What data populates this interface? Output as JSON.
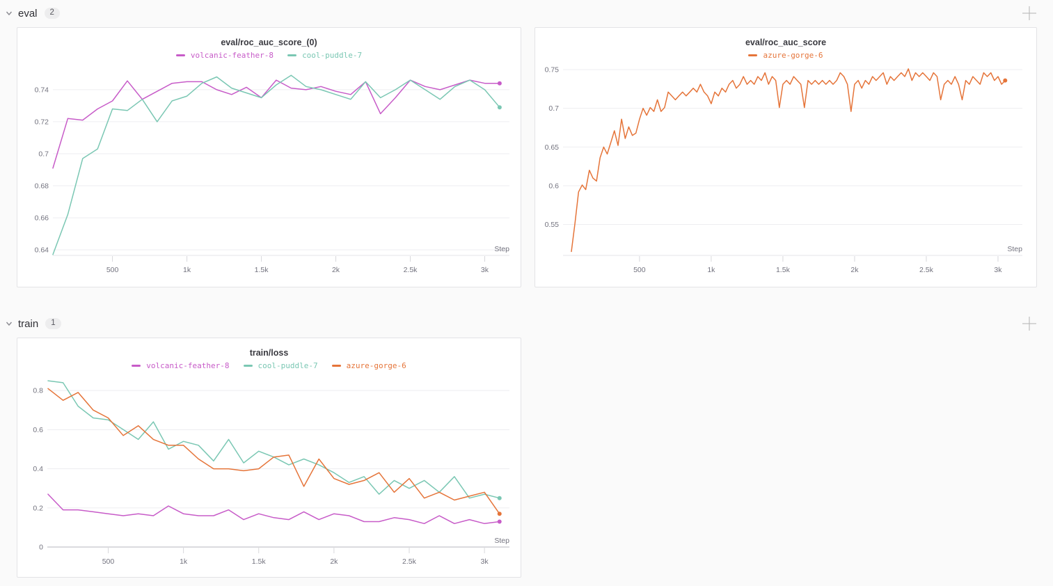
{
  "ui": {
    "background": "#fafafa"
  },
  "sections": [
    {
      "label": "eval",
      "count": "2"
    },
    {
      "label": "train",
      "count": "1"
    }
  ],
  "chart_data": [
    {
      "type": "line",
      "title": "eval/roc_auc_score_(0)",
      "xlabel": "Step",
      "grid": true,
      "legend_position": "top",
      "endpoint_dots": true,
      "ylim": [
        0.6365,
        0.7543
      ],
      "xlim": [
        100,
        3166
      ],
      "yticks": [
        {
          "v": 0.64,
          "label": "0.64"
        },
        {
          "v": 0.66,
          "label": "0.66"
        },
        {
          "v": 0.68,
          "label": "0.68"
        },
        {
          "v": 0.7,
          "label": "0.7"
        },
        {
          "v": 0.72,
          "label": "0.72"
        },
        {
          "v": 0.74,
          "label": "0.74"
        }
      ],
      "xticks": [
        {
          "v": 500,
          "label": "500"
        },
        {
          "v": 1000,
          "label": "1k"
        },
        {
          "v": 1500,
          "label": "1.5k"
        },
        {
          "v": 2000,
          "label": "2k"
        },
        {
          "v": 2500,
          "label": "2.5k"
        },
        {
          "v": 3000,
          "label": "3k"
        }
      ],
      "x": [
        100,
        200,
        300,
        400,
        500,
        600,
        700,
        800,
        900,
        1000,
        1100,
        1200,
        1300,
        1400,
        1500,
        1600,
        1700,
        1800,
        1900,
        2000,
        2100,
        2200,
        2300,
        2400,
        2500,
        2600,
        2700,
        2800,
        2900,
        3000,
        3100
      ],
      "series": [
        {
          "name": "volcanic-feather-8",
          "color": "#c75bc8",
          "values": [
            0.691,
            0.722,
            0.721,
            0.728,
            0.733,
            0.7455,
            0.734,
            0.739,
            0.744,
            0.745,
            0.745,
            0.74,
            0.737,
            0.7415,
            0.735,
            0.746,
            0.741,
            0.74,
            0.742,
            0.739,
            0.737,
            0.745,
            0.725,
            0.735,
            0.746,
            0.742,
            0.74,
            0.743,
            0.746,
            0.744,
            0.744
          ]
        },
        {
          "name": "cool-puddle-7",
          "color": "#7ac7b3",
          "values": [
            0.637,
            0.662,
            0.697,
            0.703,
            0.728,
            0.727,
            0.734,
            0.72,
            0.733,
            0.736,
            0.744,
            0.748,
            0.741,
            0.738,
            0.735,
            0.743,
            0.749,
            0.742,
            0.74,
            0.737,
            0.734,
            0.745,
            0.735,
            0.74,
            0.746,
            0.74,
            0.734,
            0.742,
            0.746,
            0.74,
            0.729
          ]
        }
      ]
    },
    {
      "type": "line",
      "title": "eval/roc_auc_score",
      "xlabel": "Step",
      "grid": true,
      "legend_position": "top",
      "endpoint_dots": true,
      "ylim": [
        0.51,
        0.7536
      ],
      "xlim": [
        25,
        3170
      ],
      "yticks": [
        {
          "v": 0.55,
          "label": "0.55"
        },
        {
          "v": 0.6,
          "label": "0.6"
        },
        {
          "v": 0.65,
          "label": "0.65"
        },
        {
          "v": 0.7,
          "label": "0.7"
        },
        {
          "v": 0.75,
          "label": "0.75"
        }
      ],
      "xticks": [
        {
          "v": 500,
          "label": "500"
        },
        {
          "v": 1000,
          "label": "1k"
        },
        {
          "v": 1500,
          "label": "1.5k"
        },
        {
          "v": 2000,
          "label": "2k"
        },
        {
          "v": 2500,
          "label": "2.5k"
        },
        {
          "v": 3000,
          "label": "3k"
        }
      ],
      "x": [
        25,
        50,
        75,
        100,
        125,
        150,
        175,
        200,
        225,
        250,
        275,
        300,
        325,
        350,
        375,
        400,
        425,
        450,
        475,
        500,
        525,
        550,
        575,
        600,
        625,
        650,
        675,
        700,
        725,
        750,
        775,
        800,
        825,
        850,
        875,
        900,
        925,
        950,
        975,
        1000,
        1025,
        1050,
        1075,
        1100,
        1125,
        1150,
        1175,
        1200,
        1225,
        1250,
        1275,
        1300,
        1325,
        1350,
        1375,
        1400,
        1425,
        1450,
        1475,
        1500,
        1525,
        1550,
        1575,
        1600,
        1625,
        1650,
        1675,
        1700,
        1725,
        1750,
        1775,
        1800,
        1825,
        1850,
        1875,
        1900,
        1925,
        1950,
        1975,
        2000,
        2025,
        2050,
        2075,
        2100,
        2125,
        2150,
        2175,
        2200,
        2225,
        2250,
        2275,
        2300,
        2325,
        2350,
        2375,
        2400,
        2425,
        2450,
        2475,
        2500,
        2525,
        2550,
        2575,
        2600,
        2625,
        2650,
        2675,
        2700,
        2725,
        2750,
        2775,
        2800,
        2825,
        2850,
        2875,
        2900,
        2925,
        2950,
        2975,
        3000,
        3025,
        3050
      ],
      "series": [
        {
          "name": "azure-gorge-6",
          "color": "#e57439",
          "values": [
            0.515,
            0.552,
            0.592,
            0.601,
            0.595,
            0.62,
            0.61,
            0.606,
            0.636,
            0.65,
            0.641,
            0.656,
            0.671,
            0.652,
            0.686,
            0.661,
            0.676,
            0.665,
            0.668,
            0.686,
            0.7,
            0.691,
            0.701,
            0.696,
            0.711,
            0.696,
            0.701,
            0.721,
            0.716,
            0.711,
            0.716,
            0.721,
            0.716,
            0.721,
            0.726,
            0.721,
            0.731,
            0.721,
            0.716,
            0.706,
            0.721,
            0.716,
            0.726,
            0.721,
            0.731,
            0.736,
            0.726,
            0.731,
            0.741,
            0.731,
            0.736,
            0.731,
            0.741,
            0.736,
            0.746,
            0.731,
            0.741,
            0.736,
            0.701,
            0.731,
            0.736,
            0.731,
            0.741,
            0.736,
            0.731,
            0.701,
            0.736,
            0.731,
            0.736,
            0.731,
            0.736,
            0.731,
            0.736,
            0.731,
            0.736,
            0.746,
            0.741,
            0.731,
            0.696,
            0.731,
            0.736,
            0.726,
            0.736,
            0.731,
            0.741,
            0.736,
            0.741,
            0.746,
            0.731,
            0.741,
            0.736,
            0.741,
            0.746,
            0.741,
            0.751,
            0.736,
            0.746,
            0.741,
            0.746,
            0.741,
            0.736,
            0.746,
            0.741,
            0.711,
            0.731,
            0.736,
            0.731,
            0.741,
            0.731,
            0.711,
            0.736,
            0.731,
            0.741,
            0.736,
            0.731,
            0.746,
            0.741,
            0.746,
            0.736,
            0.741,
            0.731,
            0.736
          ]
        }
      ]
    },
    {
      "type": "line",
      "title": "train/loss",
      "xlabel": "Step",
      "grid": true,
      "legend_position": "top",
      "endpoint_dots": true,
      "ylim": [
        0,
        0.868
      ],
      "xlim": [
        100,
        3166
      ],
      "yticks": [
        {
          "v": 0,
          "label": "0"
        },
        {
          "v": 0.2,
          "label": "0.2"
        },
        {
          "v": 0.4,
          "label": "0.4"
        },
        {
          "v": 0.6,
          "label": "0.6"
        },
        {
          "v": 0.8,
          "label": "0.8"
        }
      ],
      "xticks": [
        {
          "v": 500,
          "label": "500"
        },
        {
          "v": 1000,
          "label": "1k"
        },
        {
          "v": 1500,
          "label": "1.5k"
        },
        {
          "v": 2000,
          "label": "2k"
        },
        {
          "v": 2500,
          "label": "2.5k"
        },
        {
          "v": 3000,
          "label": "3k"
        }
      ],
      "x": [
        100,
        200,
        300,
        400,
        500,
        600,
        700,
        800,
        900,
        1000,
        1100,
        1200,
        1300,
        1400,
        1500,
        1600,
        1700,
        1800,
        1900,
        2000,
        2100,
        2200,
        2300,
        2400,
        2500,
        2600,
        2700,
        2800,
        2900,
        3000,
        3100
      ],
      "series": [
        {
          "name": "volcanic-feather-8",
          "color": "#c75bc8",
          "values": [
            0.27,
            0.19,
            0.19,
            0.18,
            0.17,
            0.16,
            0.17,
            0.16,
            0.21,
            0.17,
            0.16,
            0.16,
            0.19,
            0.14,
            0.17,
            0.15,
            0.14,
            0.18,
            0.14,
            0.17,
            0.16,
            0.13,
            0.13,
            0.15,
            0.14,
            0.12,
            0.16,
            0.12,
            0.14,
            0.12,
            0.13
          ]
        },
        {
          "name": "cool-puddle-7",
          "color": "#7ac7b3",
          "values": [
            0.85,
            0.84,
            0.72,
            0.66,
            0.65,
            0.6,
            0.55,
            0.64,
            0.5,
            0.54,
            0.52,
            0.44,
            0.55,
            0.43,
            0.49,
            0.46,
            0.42,
            0.45,
            0.42,
            0.38,
            0.33,
            0.36,
            0.27,
            0.34,
            0.3,
            0.34,
            0.28,
            0.36,
            0.25,
            0.27,
            0.25
          ]
        },
        {
          "name": "azure-gorge-6",
          "color": "#e57439",
          "values": [
            0.81,
            0.75,
            0.79,
            0.7,
            0.66,
            0.57,
            0.62,
            0.55,
            0.52,
            0.52,
            0.45,
            0.4,
            0.4,
            0.39,
            0.4,
            0.46,
            0.47,
            0.31,
            0.45,
            0.35,
            0.32,
            0.34,
            0.38,
            0.28,
            0.35,
            0.25,
            0.28,
            0.24,
            0.26,
            0.28,
            0.17
          ]
        }
      ]
    }
  ]
}
